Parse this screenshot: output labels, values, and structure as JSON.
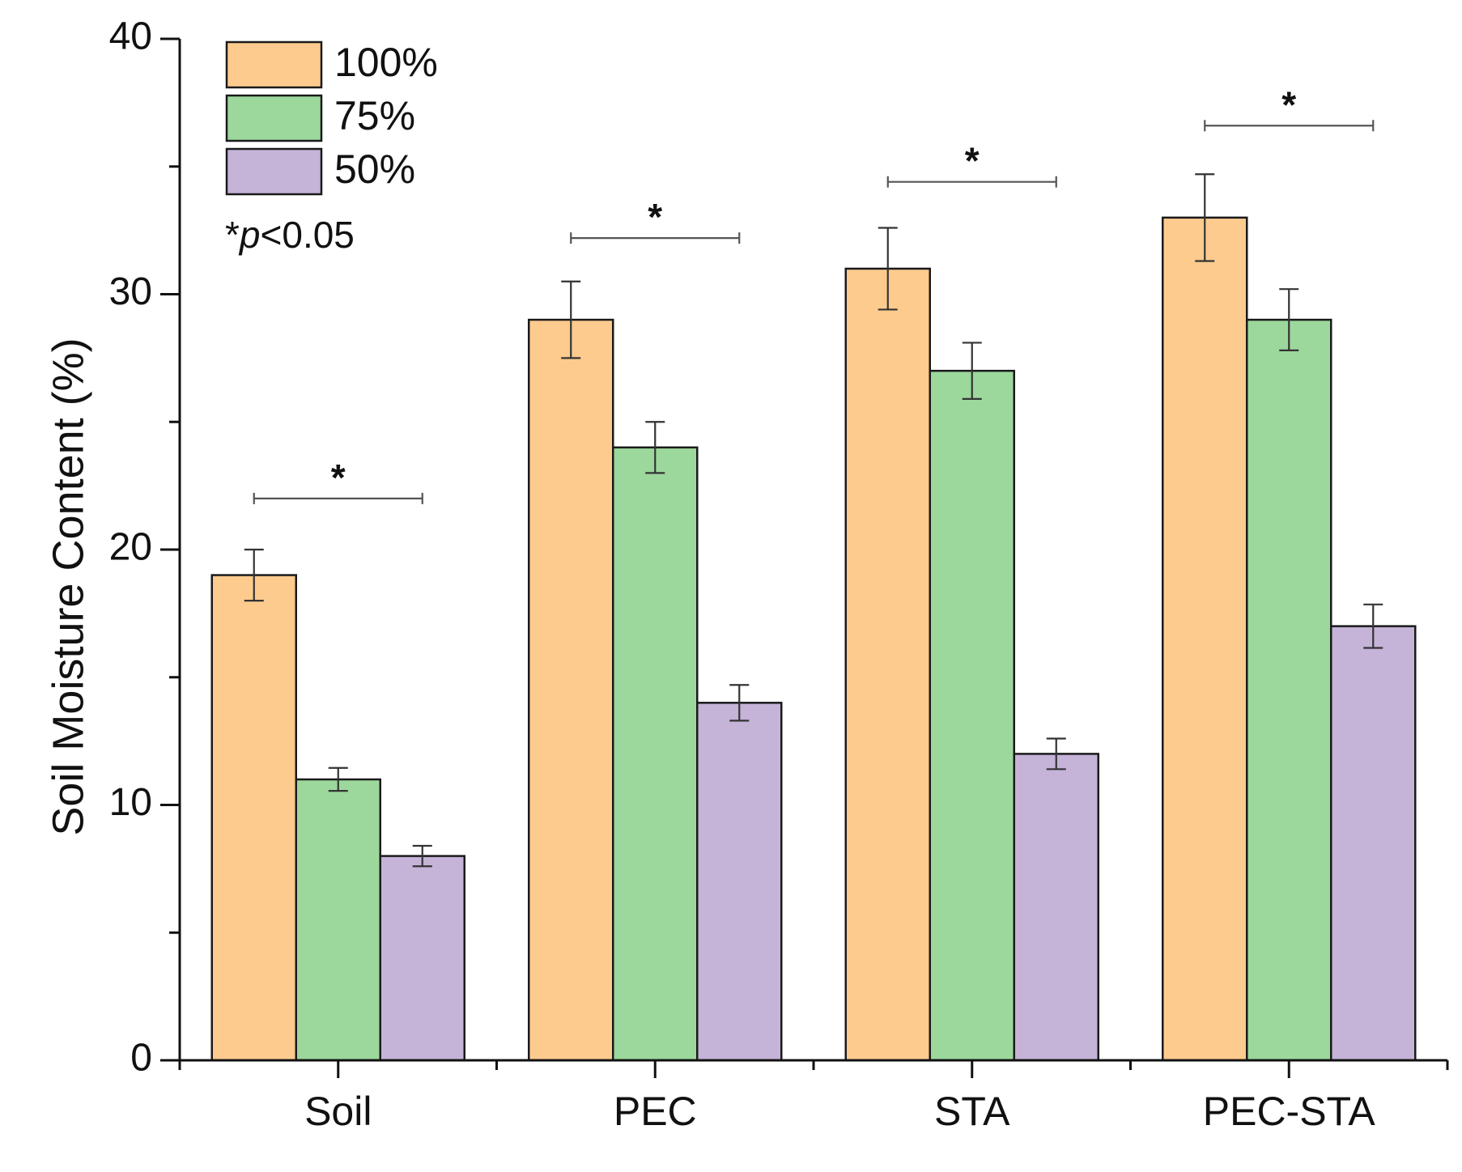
{
  "chart_data": {
    "type": "bar",
    "title": "",
    "xlabel": "",
    "ylabel": "Soil Moisture Content (%)",
    "ylim": [
      0,
      40
    ],
    "yticks": [
      0,
      10,
      20,
      30,
      40
    ],
    "categories": [
      "Soil",
      "PEC",
      "STA",
      "PEC-STA"
    ],
    "series": [
      {
        "name": "100%",
        "color": "#fecb8f",
        "values": [
          19,
          29,
          31,
          33
        ],
        "errors": [
          1.0,
          1.5,
          1.6,
          1.7
        ]
      },
      {
        "name": "75%",
        "color": "#9cd89c",
        "values": [
          11,
          24,
          27,
          29
        ],
        "errors": [
          0.45,
          1.0,
          1.1,
          1.2
        ]
      },
      {
        "name": "50%",
        "color": "#c5b3d8",
        "values": [
          8,
          14,
          12,
          17
        ],
        "errors": [
          0.4,
          0.7,
          0.6,
          0.85
        ]
      }
    ],
    "significance": {
      "note_prefix": "*",
      "note_italic": "p",
      "note_suffix": "<0.05",
      "marker": "*",
      "brackets": [
        {
          "category": "Soil",
          "y": 22.0
        },
        {
          "category": "PEC",
          "y": 32.2
        },
        {
          "category": "STA",
          "y": 34.4
        },
        {
          "category": "PEC-STA",
          "y": 36.6
        }
      ]
    },
    "legend_position": "top-left",
    "grid": false
  }
}
